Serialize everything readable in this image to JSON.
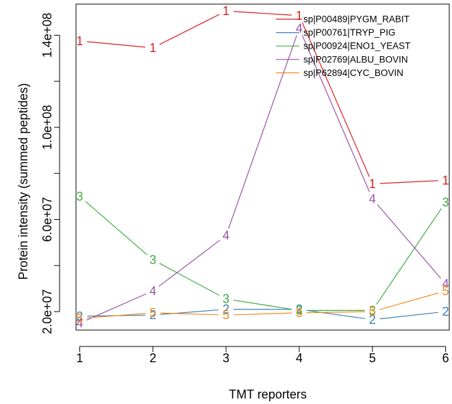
{
  "chart_data": {
    "type": "line",
    "title": "",
    "xlabel": "TMT reporters",
    "ylabel": "Protein intensity (summed peptides)",
    "x": [
      1,
      2,
      3,
      4,
      5,
      6
    ],
    "x_ticks": [
      "1",
      "2",
      "3",
      "4",
      "5",
      "6"
    ],
    "y_ticks": [
      {
        "value": 20000000,
        "label": "2.0e+07"
      },
      {
        "value": 60000000,
        "label": "6.0e+07"
      },
      {
        "value": 100000000,
        "label": "1.0e+08"
      },
      {
        "value": 140000000,
        "label": "1.4e+08"
      }
    ],
    "xlim": [
      0.95,
      6.05
    ],
    "ylim": [
      12000000,
      153500000
    ],
    "grid": false,
    "legend_position": "top-right",
    "series": [
      {
        "name": "sp|P00489|PYGM_RABIT",
        "marker": "1",
        "color": "#dd1c1c",
        "values": [
          137500000,
          134500000,
          150500000,
          148500000,
          75500000,
          77000000
        ]
      },
      {
        "name": "sp|P00761|TRYP_PIG",
        "marker": "2",
        "color": "#3a7fba",
        "values": [
          18000000,
          18500000,
          21000000,
          21000000,
          16500000,
          20000000
        ]
      },
      {
        "name": "sp|P00924|ENO1_YEAST",
        "marker": "3",
        "color": "#3bab3b",
        "values": [
          70000000,
          42500000,
          25500000,
          20500000,
          20500000,
          67500000
        ]
      },
      {
        "name": "sp|P02769|ALBU_BOVIN",
        "marker": "4",
        "color": "#9a4fa6",
        "values": [
          15000000,
          29000000,
          53000000,
          143000000,
          69000000,
          32000000
        ]
      },
      {
        "name": "sp|P62894|CYC_BOVIN",
        "marker": "5",
        "color": "#f28a1c",
        "values": [
          17000000,
          19500000,
          18500000,
          19500000,
          20000000,
          29000000
        ]
      }
    ]
  }
}
